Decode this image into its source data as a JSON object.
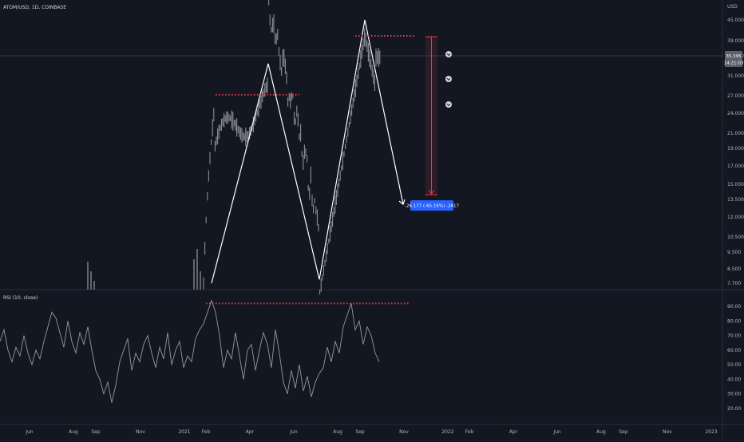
{
  "header": {
    "symbol_label": "ATOM/USD, 1D, COINBASE"
  },
  "price_axis": {
    "unit": "USD",
    "ticks": [
      "45.000",
      "39.000",
      "35.000",
      "31.000",
      "27.000",
      "24.000",
      "21.000",
      "19.000",
      "17.000",
      "15.000",
      "13.500",
      "12.000",
      "10.500",
      "9.500",
      "8.500",
      "7.700"
    ],
    "current_price": "35.395",
    "countdown": "14:21:03"
  },
  "rsi": {
    "label": "RSI (10, close)",
    "ticks": [
      "90.00",
      "80.00",
      "70.00",
      "60.00",
      "50.00",
      "40.00",
      "30.00",
      "20.00"
    ]
  },
  "time_axis": {
    "ticks": [
      "Jun",
      "Aug",
      "Sep",
      "Nov",
      "2021",
      "Feb",
      "Apr",
      "Jun",
      "Aug",
      "Sep",
      "Nov",
      "2022",
      "Feb",
      "Apr",
      "Jun",
      "Aug",
      "Sep",
      "Nov",
      "2023"
    ]
  },
  "measure_label": "-26.177 (-65.16%) -2617",
  "colors": {
    "bg": "#131722",
    "candle": "#8c8f99",
    "line": "#ffffff",
    "dotted": "#f23645",
    "measure_box": "#2962ff",
    "rsi_line": "#9598a1",
    "separator": "#2a2e39"
  },
  "chart_data": {
    "type": "line",
    "price_scale": "log",
    "price_range": [
      7.2,
      50
    ],
    "rsi_range": [
      15,
      100
    ],
    "zigzag_price_points": [
      [
        265,
        7.7
      ],
      [
        336,
        34.5
      ],
      [
        400,
        7.9
      ],
      [
        457,
        46.5
      ],
      [
        505,
        13.2
      ]
    ],
    "resistance_levels": [
      {
        "price": 27.9,
        "from": 270,
        "to": 375
      },
      {
        "price": 41.7,
        "from": 445,
        "to": 520
      }
    ],
    "rsi_overbought_level": 92,
    "rsi_line_points": [
      [
        0,
        66
      ],
      [
        5,
        74
      ],
      [
        10,
        60
      ],
      [
        15,
        52
      ],
      [
        20,
        62
      ],
      [
        25,
        56
      ],
      [
        30,
        70
      ],
      [
        35,
        58
      ],
      [
        40,
        50
      ],
      [
        45,
        60
      ],
      [
        50,
        54
      ],
      [
        55,
        66
      ],
      [
        60,
        76
      ],
      [
        65,
        86
      ],
      [
        70,
        82
      ],
      [
        75,
        72
      ],
      [
        80,
        62
      ],
      [
        85,
        80
      ],
      [
        90,
        66
      ],
      [
        95,
        58
      ],
      [
        100,
        72
      ],
      [
        105,
        64
      ],
      [
        110,
        76
      ],
      [
        115,
        60
      ],
      [
        120,
        46
      ],
      [
        125,
        40
      ],
      [
        130,
        30
      ],
      [
        135,
        38
      ],
      [
        140,
        24
      ],
      [
        145,
        36
      ],
      [
        150,
        52
      ],
      [
        155,
        60
      ],
      [
        160,
        68
      ],
      [
        165,
        46
      ],
      [
        170,
        58
      ],
      [
        175,
        52
      ],
      [
        180,
        64
      ],
      [
        185,
        70
      ],
      [
        190,
        58
      ],
      [
        195,
        48
      ],
      [
        200,
        62
      ],
      [
        205,
        54
      ],
      [
        210,
        72
      ],
      [
        215,
        50
      ],
      [
        220,
        60
      ],
      [
        225,
        66
      ],
      [
        230,
        48
      ],
      [
        235,
        56
      ],
      [
        240,
        52
      ],
      [
        245,
        68
      ],
      [
        250,
        74
      ],
      [
        255,
        78
      ],
      [
        260,
        86
      ],
      [
        265,
        94
      ],
      [
        270,
        86
      ],
      [
        275,
        70
      ],
      [
        280,
        48
      ],
      [
        285,
        60
      ],
      [
        290,
        54
      ],
      [
        295,
        72
      ],
      [
        300,
        56
      ],
      [
        305,
        40
      ],
      [
        310,
        60
      ],
      [
        315,
        64
      ],
      [
        320,
        46
      ],
      [
        325,
        60
      ],
      [
        330,
        72
      ],
      [
        335,
        64
      ],
      [
        340,
        48
      ],
      [
        345,
        74
      ],
      [
        350,
        58
      ],
      [
        355,
        38
      ],
      [
        360,
        30
      ],
      [
        365,
        46
      ],
      [
        370,
        34
      ],
      [
        375,
        50
      ],
      [
        380,
        32
      ],
      [
        385,
        42
      ],
      [
        390,
        28
      ],
      [
        395,
        38
      ],
      [
        400,
        44
      ],
      [
        405,
        48
      ],
      [
        410,
        62
      ],
      [
        415,
        52
      ],
      [
        420,
        66
      ],
      [
        425,
        58
      ],
      [
        430,
        76
      ],
      [
        435,
        84
      ],
      [
        440,
        92
      ],
      [
        445,
        74
      ],
      [
        450,
        80
      ],
      [
        455,
        64
      ],
      [
        460,
        76
      ],
      [
        465,
        70
      ],
      [
        470,
        58
      ],
      [
        475,
        52
      ]
    ],
    "candle_count": 260
  }
}
